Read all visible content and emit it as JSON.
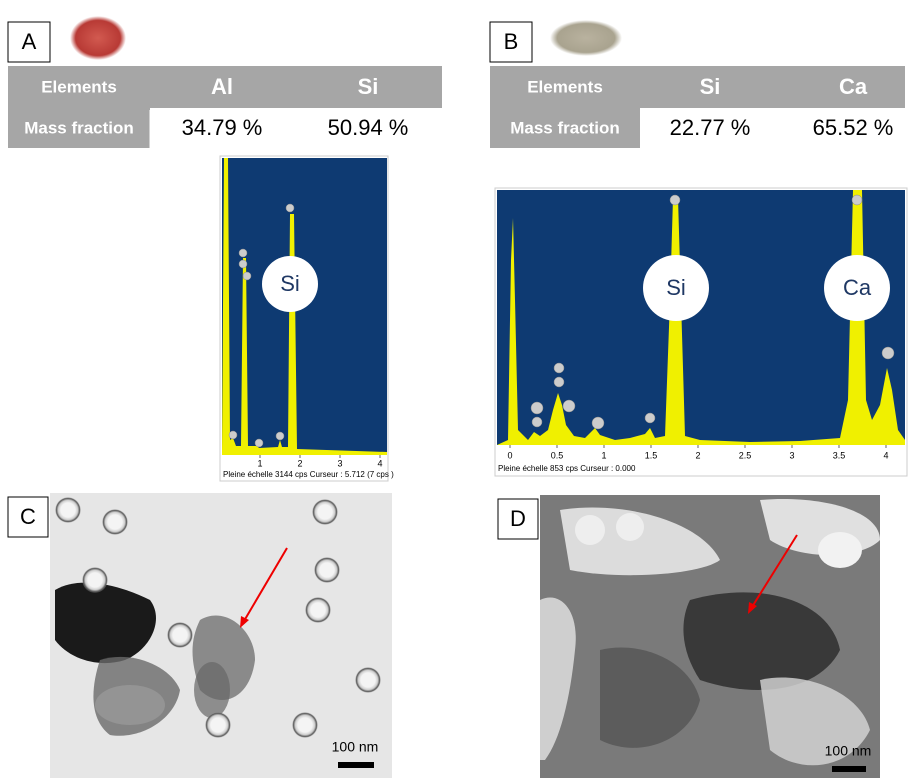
{
  "panels": [
    {
      "label": "A",
      "table": {
        "header": [
          "Elements",
          "Al",
          "Si"
        ],
        "rows": [
          [
            "Mass fraction",
            "34.79 %",
            "50.94 %"
          ]
        ]
      },
      "spectrum": {
        "peak_labels": [
          "Si"
        ],
        "axis_ticks": [
          "1",
          "2",
          "3",
          "4"
        ],
        "footer": "Pleine échelle 3144 cps  Curseur : 5.712 (7 cps )"
      }
    },
    {
      "label": "B",
      "table": {
        "header": [
          "Elements",
          "Si",
          "Ca"
        ],
        "rows": [
          [
            "Mass fraction",
            "22.77 %",
            "65.52 %"
          ]
        ]
      },
      "spectrum": {
        "peak_labels": [
          "Si",
          "Ca"
        ],
        "axis_ticks": [
          "0",
          "0.5",
          "1",
          "1.5",
          "2",
          "2.5",
          "3",
          "3.5",
          "4"
        ],
        "footer": "Pleine échelle 853 cps  Curseur : 0.000"
      }
    },
    {
      "label": "C",
      "scale_bar": "100 nm"
    },
    {
      "label": "D",
      "scale_bar": "100 nm"
    }
  ]
}
